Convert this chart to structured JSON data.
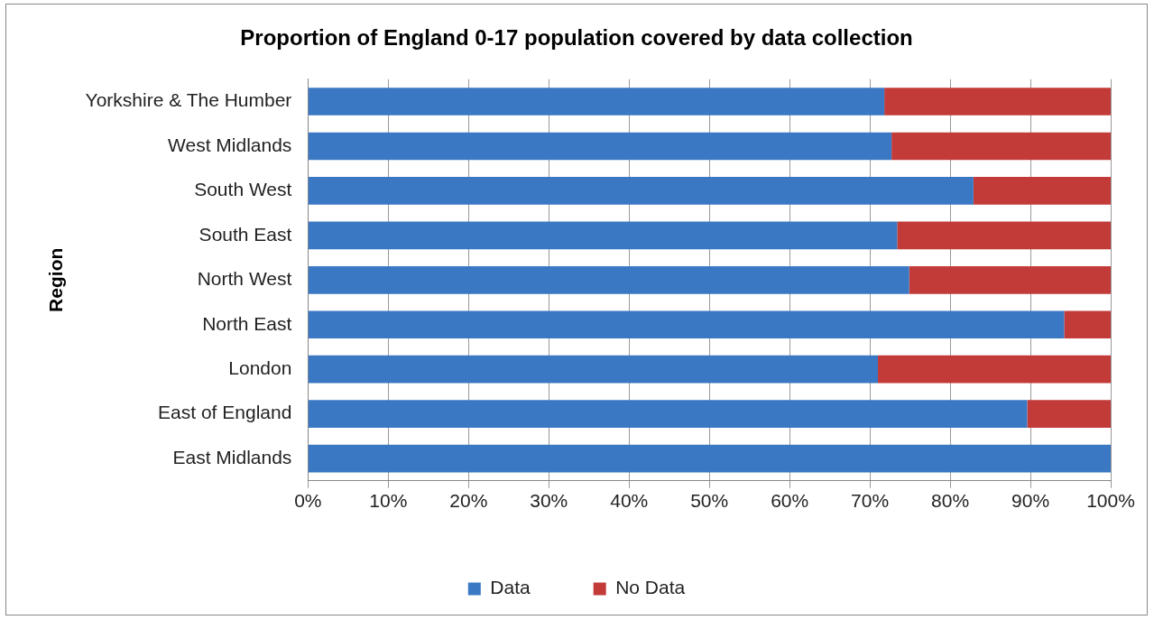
{
  "chart_data": {
    "type": "bar",
    "orientation": "horizontal",
    "stacked": true,
    "title": "Proportion of England 0-17 population covered by data collection",
    "ylabel": "Region",
    "categories": [
      "Yorkshire & The Humber",
      "West Midlands",
      "South West",
      "South East",
      "North West",
      "North East",
      "London",
      "East of England",
      "East Midlands"
    ],
    "series": [
      {
        "name": "Data",
        "color": "#3a78c3",
        "values": [
          71.8,
          72.7,
          82.9,
          73.4,
          74.9,
          94.2,
          71.0,
          89.6,
          100
        ]
      },
      {
        "name": "No Data",
        "color": "#c23b39",
        "values": [
          28.2,
          27.3,
          17.1,
          26.6,
          25.1,
          5.8,
          29.0,
          10.4,
          0
        ]
      }
    ],
    "xlim": [
      0,
      100
    ],
    "xticks": [
      {
        "value": 0,
        "label": "0%"
      },
      {
        "value": 10,
        "label": "10%"
      },
      {
        "value": 20,
        "label": "20%"
      },
      {
        "value": 30,
        "label": "30%"
      },
      {
        "value": 40,
        "label": "40%"
      },
      {
        "value": 50,
        "label": "50%"
      },
      {
        "value": 60,
        "label": "60%"
      },
      {
        "value": 70,
        "label": "70%"
      },
      {
        "value": 80,
        "label": "80%"
      },
      {
        "value": 90,
        "label": "90%"
      },
      {
        "value": 100,
        "label": "100%"
      }
    ],
    "grid": "x",
    "legend": "bottom"
  }
}
